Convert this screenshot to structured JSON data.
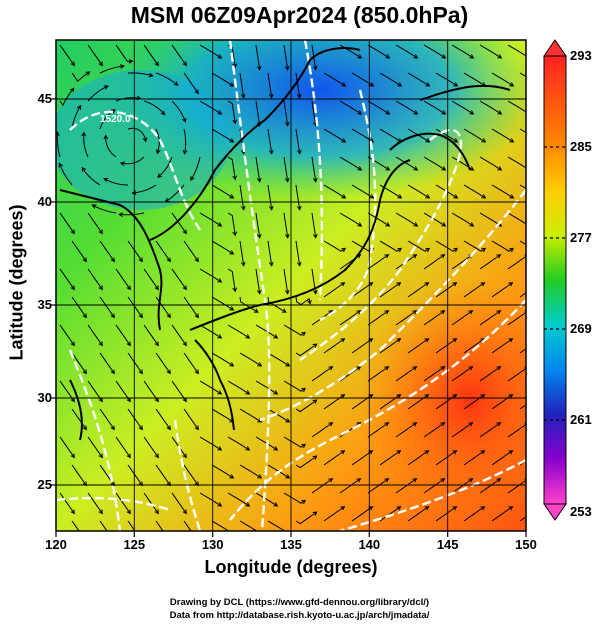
{
  "title": "MSM 06Z09Apr2024 (850.0hPa)",
  "x_axis": {
    "label": "Longitude (degrees)",
    "ticks": [
      "120",
      "125",
      "130",
      "135",
      "140",
      "145",
      "150"
    ]
  },
  "y_axis": {
    "label": "Latitude  (degrees)",
    "ticks": [
      "45",
      "40",
      "35",
      "30",
      "25"
    ]
  },
  "colorbar": {
    "labels": [
      "293",
      "285",
      "277",
      "269",
      "261",
      "253"
    ],
    "colors": [
      "#ff3333",
      "#ff8800",
      "#ffd700",
      "#66dd22",
      "#00cc66",
      "#00cccc",
      "#0077ee",
      "#2222aa",
      "#9900cc",
      "#ff44cc"
    ]
  },
  "contours": {
    "label_example": "1520.0"
  },
  "credits": {
    "line1": "Drawing by DCL (https://www.gfd-dennou.org/library/dcl/)",
    "line2": "Data from http://database.rish.kyoto-u.ac.jp/arch/jmadata/"
  }
}
